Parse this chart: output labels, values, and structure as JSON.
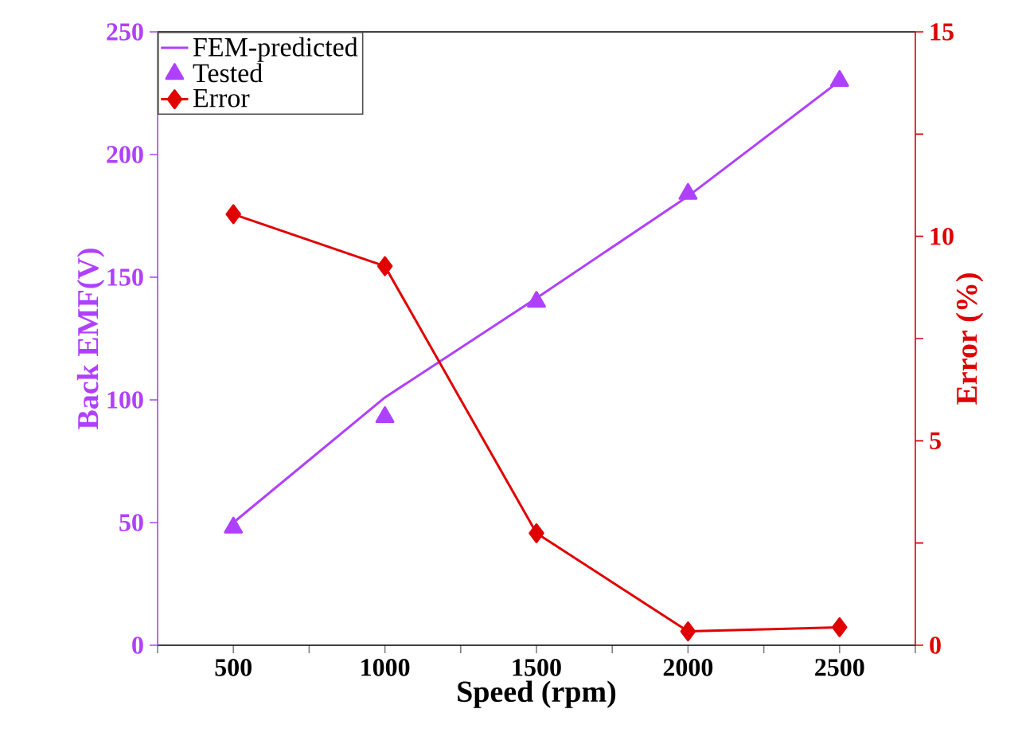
{
  "chart_data": {
    "type": "line",
    "xlabel": "Speed (rpm)",
    "ylabel": "Back EMF(V)",
    "y2label": "Error (%)",
    "x": [
      500,
      1000,
      1500,
      2000,
      2500
    ],
    "xlim": [
      250,
      2750
    ],
    "xticks": [
      {
        "value": 250,
        "label": null
      },
      500,
      {
        "value": 750,
        "label": null
      },
      1000,
      {
        "value": 1250,
        "label": null
      },
      1500,
      {
        "value": 1750,
        "label": null
      },
      2000,
      {
        "value": 2250,
        "label": null
      },
      2500,
      {
        "value": 2750,
        "label": null
      }
    ],
    "ylim": [
      0,
      250
    ],
    "yticks": [
      0,
      50,
      100,
      150,
      200,
      250
    ],
    "y2lim": [
      0,
      15
    ],
    "y2ticks": [
      0,
      {
        "value": 2.5,
        "label": null
      },
      5,
      {
        "value": 7.5,
        "label": null
      },
      10,
      {
        "value": 12.5,
        "label": null
      },
      15
    ],
    "legend": "top left",
    "series": [
      {
        "name": "FEM-predicted",
        "marker": "none",
        "color": "#b040ff",
        "values": [
          50,
          101,
          141.5,
          183,
          230
        ]
      },
      {
        "name": "Tested",
        "type": "scatter",
        "marker": "triangle",
        "color": "#b040ff",
        "values": [
          48,
          93,
          140,
          184,
          230
        ]
      },
      {
        "name": "Error",
        "marker": "diamond",
        "axis": "y2",
        "color": "#e00000",
        "values": [
          10.54,
          9.27,
          2.74,
          0.34,
          0.44
        ]
      }
    ]
  }
}
